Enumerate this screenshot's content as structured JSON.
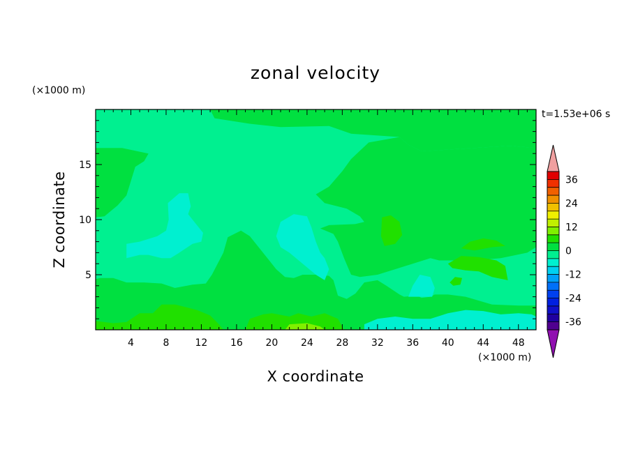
{
  "chart_data": {
    "type": "heatmap",
    "title": "zonal velocity",
    "xlabel": "X coordinate",
    "ylabel": "Z coordinate",
    "x_unit": "(×1000 m)",
    "y_unit": "(×1000 m)",
    "time_label": "t=1.53e+06 s",
    "xlim": [
      0,
      50
    ],
    "ylim": [
      0,
      20
    ],
    "x_ticks": [
      4,
      8,
      12,
      16,
      20,
      24,
      28,
      32,
      36,
      40,
      44,
      48
    ],
    "y_ticks": [
      5,
      10,
      15
    ],
    "colorbar": {
      "levels": [
        -40,
        -36,
        -32,
        -28,
        -24,
        -20,
        -16,
        -12,
        -8,
        -4,
        0,
        4,
        8,
        12,
        16,
        20,
        24,
        28,
        32,
        36,
        40
      ],
      "tick_labels": [
        "36",
        "24",
        "12",
        "0",
        "-12",
        "-24",
        "-36"
      ],
      "tick_values": [
        36,
        24,
        12,
        0,
        -12,
        -24,
        -36
      ],
      "colors": [
        "#500090",
        "#2000a0",
        "#1010c8",
        "#0020e0",
        "#0040f0",
        "#0070f8",
        "#00a0f8",
        "#00d0f0",
        "#00f0d0",
        "#00f090",
        "#00e040",
        "#20e000",
        "#80f000",
        "#c0f000",
        "#f0f000",
        "#f0c000",
        "#f09000",
        "#f06000",
        "#f03000",
        "#e00000"
      ],
      "under_color": "#9010b0",
      "over_color": "#f0a0a0"
    },
    "base_value": -2,
    "regions": [
      {
        "name": "upper-right-positive",
        "value": 2,
        "shape": [
          [
            13,
            20
          ],
          [
            50,
            20
          ],
          [
            50,
            16.5
          ],
          [
            47,
            16.7
          ],
          [
            37,
            16.2
          ],
          [
            35.5,
            16.8
          ],
          [
            34.5,
            17.5
          ],
          [
            29,
            17.8
          ],
          [
            26.5,
            18.5
          ],
          [
            21,
            18.4
          ],
          [
            17.5,
            18.7
          ],
          [
            13.5,
            19.2
          ]
        ]
      },
      {
        "name": "right-positive-body",
        "value": 2,
        "shape": [
          [
            29,
            15.5
          ],
          [
            28,
            14.4
          ],
          [
            26.5,
            13
          ],
          [
            25,
            12.3
          ],
          [
            26,
            11.5
          ],
          [
            28.5,
            11
          ],
          [
            30,
            10.3
          ],
          [
            30.5,
            9.8
          ],
          [
            29.5,
            9.6
          ],
          [
            26.5,
            9.5
          ],
          [
            25.5,
            9.2
          ],
          [
            27,
            8.7
          ],
          [
            27.5,
            8
          ],
          [
            28.2,
            6.5
          ],
          [
            29,
            5
          ],
          [
            30,
            4.8
          ],
          [
            32,
            5
          ],
          [
            34,
            5.5
          ],
          [
            36,
            6
          ],
          [
            38,
            6.5
          ],
          [
            39,
            6.3
          ],
          [
            40,
            6.3
          ],
          [
            43,
            6.3
          ],
          [
            46,
            6.5
          ],
          [
            49,
            7
          ],
          [
            50,
            7.5
          ],
          [
            50,
            16.5
          ],
          [
            47,
            16.7
          ],
          [
            37,
            16.2
          ],
          [
            35.5,
            16.8
          ],
          [
            34.5,
            17.5
          ],
          [
            31,
            17
          ]
        ]
      },
      {
        "name": "left-positive-patch",
        "value": 2,
        "shape": [
          [
            0,
            10.2
          ],
          [
            0,
            16.5
          ],
          [
            3,
            16.5
          ],
          [
            6,
            16
          ],
          [
            5.5,
            15.3
          ],
          [
            4.5,
            14.8
          ],
          [
            4,
            13.5
          ],
          [
            3.5,
            12.2
          ],
          [
            2.5,
            11.3
          ],
          [
            1,
            10.3
          ]
        ]
      },
      {
        "name": "lower-positive-band",
        "value": 2,
        "shape": [
          [
            0,
            0
          ],
          [
            50,
            0
          ],
          [
            50,
            2.2
          ],
          [
            48,
            2.2
          ],
          [
            45,
            2.3
          ],
          [
            42,
            3
          ],
          [
            40,
            3.2
          ],
          [
            38.5,
            3.2
          ],
          [
            38,
            3
          ],
          [
            37,
            2.9
          ],
          [
            36.5,
            3.1
          ],
          [
            35,
            3
          ],
          [
            34.5,
            3.2
          ],
          [
            33,
            4
          ],
          [
            32,
            4.5
          ],
          [
            30.5,
            4.3
          ],
          [
            29.5,
            3.3
          ],
          [
            28.5,
            2.8
          ],
          [
            27.5,
            3.1
          ],
          [
            27,
            4.5
          ],
          [
            26.5,
            4.9
          ],
          [
            25,
            5
          ],
          [
            23.5,
            5
          ],
          [
            22.5,
            4.7
          ],
          [
            21.5,
            4.8
          ],
          [
            20.5,
            5.5
          ],
          [
            19.5,
            6.5
          ],
          [
            18.5,
            7.5
          ],
          [
            17.5,
            8.5
          ],
          [
            16.5,
            9
          ],
          [
            15,
            8.4
          ],
          [
            14.5,
            7
          ],
          [
            13.2,
            5
          ],
          [
            12.5,
            4.2
          ],
          [
            11,
            4.1
          ],
          [
            9,
            3.8
          ],
          [
            7.5,
            4.2
          ],
          [
            5.5,
            4.3
          ],
          [
            3.5,
            4.3
          ],
          [
            2,
            4.7
          ],
          [
            0.5,
            4.7
          ],
          [
            0,
            4.6
          ]
        ]
      },
      {
        "name": "center-negative-pocket",
        "value": -6,
        "shape": [
          [
            20.5,
            8.5
          ],
          [
            21,
            9.8
          ],
          [
            22.5,
            10.5
          ],
          [
            24,
            10.3
          ],
          [
            24.5,
            9.3
          ],
          [
            25,
            8
          ],
          [
            25.5,
            7
          ],
          [
            26,
            6.5
          ],
          [
            26.5,
            5.5
          ],
          [
            26,
            4.5
          ],
          [
            25,
            5
          ],
          [
            23.5,
            6
          ],
          [
            22,
            7
          ],
          [
            21,
            7.5
          ]
        ]
      },
      {
        "name": "left-negative-pocket",
        "value": -6,
        "shape": [
          [
            3.5,
            6.5
          ],
          [
            3.5,
            7.8
          ],
          [
            5,
            8
          ],
          [
            7,
            8.5
          ],
          [
            8,
            9
          ],
          [
            8.3,
            10
          ],
          [
            8.2,
            11.5
          ],
          [
            9.5,
            12.4
          ],
          [
            10.5,
            12.4
          ],
          [
            10.8,
            11.2
          ],
          [
            10.5,
            10.5
          ],
          [
            11,
            10
          ],
          [
            11.5,
            9.5
          ],
          [
            12.2,
            8.8
          ],
          [
            12,
            8
          ],
          [
            11,
            7.8
          ],
          [
            9.5,
            7
          ],
          [
            8.5,
            6.5
          ],
          [
            7.5,
            6.5
          ],
          [
            6,
            6.8
          ],
          [
            5,
            6.8
          ]
        ]
      },
      {
        "name": "right-negative-pocket",
        "value": -6,
        "shape": [
          [
            35.5,
            3
          ],
          [
            36,
            4
          ],
          [
            36.8,
            5
          ],
          [
            38,
            4.8
          ],
          [
            38.5,
            3.8
          ],
          [
            38.2,
            3
          ]
        ]
      },
      {
        "name": "bottom-right-negative",
        "value": -6,
        "shape": [
          [
            30.5,
            0
          ],
          [
            30.5,
            0.5
          ],
          [
            32,
            1
          ],
          [
            34,
            1.2
          ],
          [
            36,
            1
          ],
          [
            38,
            1
          ],
          [
            40,
            1.5
          ],
          [
            42,
            1.8
          ],
          [
            44,
            1.7
          ],
          [
            46,
            1.4
          ],
          [
            48,
            1.5
          ],
          [
            49.5,
            1.4
          ],
          [
            50,
            1.2
          ],
          [
            50,
            0
          ]
        ]
      },
      {
        "name": "bottom-left-pocket",
        "value": 6,
        "shape": [
          [
            0,
            0
          ],
          [
            0,
            0.8
          ],
          [
            2,
            0.6
          ],
          [
            3.5,
            0.7
          ],
          [
            5,
            1.5
          ],
          [
            6.5,
            1.5
          ],
          [
            7.5,
            2.3
          ],
          [
            9,
            2.3
          ],
          [
            10.5,
            2
          ],
          [
            11.5,
            1.8
          ],
          [
            13,
            1.3
          ],
          [
            14,
            0.5
          ],
          [
            14.5,
            0
          ]
        ]
      },
      {
        "name": "bottom-center-pocket",
        "value": 6,
        "shape": [
          [
            17,
            0
          ],
          [
            17.5,
            1
          ],
          [
            19,
            1.4
          ],
          [
            20,
            1.5
          ],
          [
            22,
            1.2
          ],
          [
            23,
            1.5
          ],
          [
            24.5,
            1.2
          ],
          [
            26,
            1.5
          ],
          [
            27.5,
            1
          ],
          [
            28.2,
            0
          ]
        ]
      },
      {
        "name": "bottom-center-core",
        "value": 10,
        "shape": [
          [
            21.5,
            0
          ],
          [
            22,
            0.5
          ],
          [
            24,
            0.6
          ],
          [
            25.5,
            0.3
          ],
          [
            26,
            0
          ]
        ]
      },
      {
        "name": "right-positive-blob-upper",
        "value": 6,
        "shape": [
          [
            41.5,
            7.4
          ],
          [
            42.5,
            8
          ],
          [
            44,
            8.3
          ],
          [
            45.5,
            8.1
          ],
          [
            46.5,
            7.6
          ],
          [
            45,
            7.5
          ],
          [
            43,
            7.2
          ]
        ]
      },
      {
        "name": "right-positive-blob-lower",
        "value": 6,
        "shape": [
          [
            40,
            6
          ],
          [
            41.5,
            6.7
          ],
          [
            43.5,
            6.6
          ],
          [
            45.5,
            6.3
          ],
          [
            46.5,
            5.8
          ],
          [
            46.8,
            4.5
          ],
          [
            45,
            4.8
          ],
          [
            43.5,
            5.3
          ],
          [
            42,
            5.4
          ],
          [
            40.5,
            5.6
          ]
        ]
      },
      {
        "name": "right-positive-dot",
        "value": 6,
        "shape": [
          [
            40.2,
            4.3
          ],
          [
            40.8,
            4.8
          ],
          [
            41.6,
            4.7
          ],
          [
            41.4,
            4.1
          ],
          [
            40.6,
            4
          ]
        ]
      },
      {
        "name": "center-positive-blob",
        "value": 6,
        "shape": [
          [
            32.5,
            10.2
          ],
          [
            33.5,
            10.4
          ],
          [
            34.5,
            9.8
          ],
          [
            34.8,
            8.6
          ],
          [
            34,
            7.8
          ],
          [
            32.8,
            7.6
          ],
          [
            32.4,
            8.5
          ]
        ]
      }
    ]
  }
}
